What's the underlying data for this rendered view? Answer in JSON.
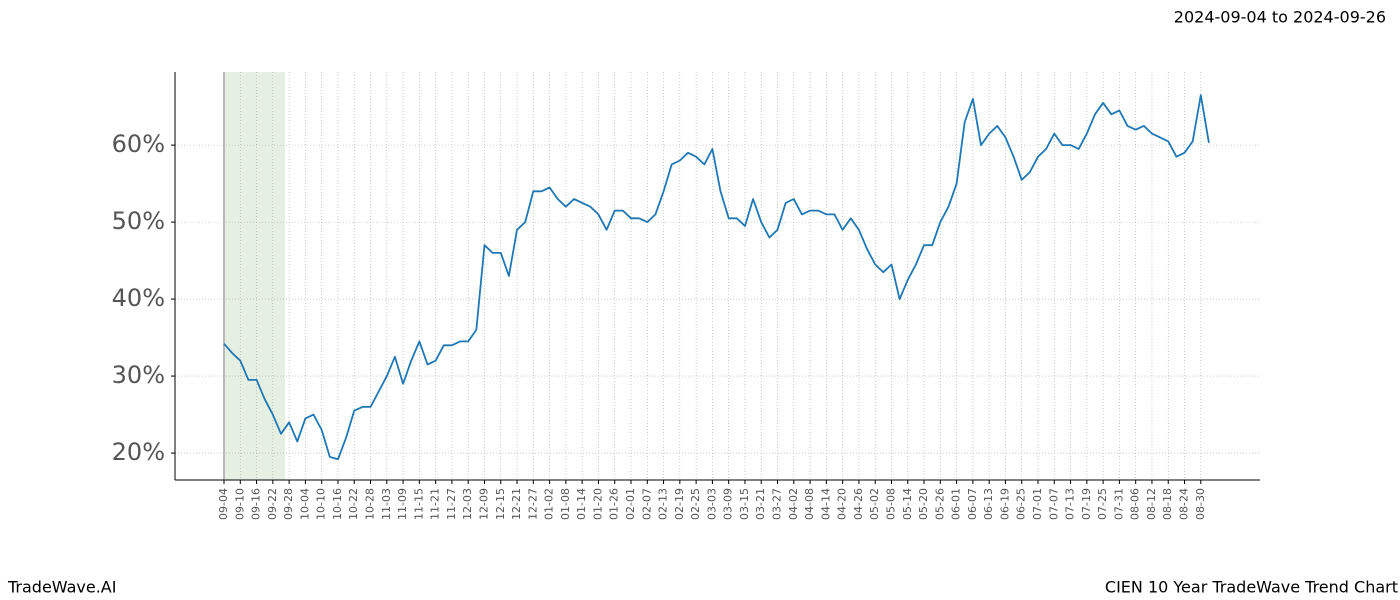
{
  "header": {
    "date_range": "2024-09-04 to 2024-09-26"
  },
  "footer": {
    "brand": "TradeWave.AI",
    "chart_name": "CIEN 10 Year TradeWave Trend Chart"
  },
  "chart_data": {
    "type": "line",
    "color": "#1f77b4",
    "grid": true,
    "shaded_range": [
      "09-04",
      "09-28"
    ],
    "shade_color": "#e5f0e3",
    "ylim": [
      16.5,
      69.5
    ],
    "yticks": [
      {
        "value": 20,
        "label": "20%"
      },
      {
        "value": 30,
        "label": "30%"
      },
      {
        "value": 40,
        "label": "40%"
      },
      {
        "value": 50,
        "label": "50%"
      },
      {
        "value": 60,
        "label": "60%"
      }
    ],
    "categories": [
      "09-04",
      null,
      "09-10",
      null,
      "09-16",
      null,
      "09-22",
      null,
      "09-28",
      null,
      "10-04",
      null,
      "10-10",
      null,
      "10-16",
      null,
      "10-22",
      null,
      "10-28",
      null,
      "11-03",
      null,
      "11-09",
      null,
      "11-15",
      null,
      "11-21",
      null,
      "11-27",
      null,
      "12-03",
      null,
      "12-09",
      null,
      "12-15",
      null,
      "12-21",
      null,
      "12-27",
      null,
      "01-02",
      null,
      "01-08",
      null,
      "01-14",
      null,
      "01-20",
      null,
      "01-26",
      null,
      "02-01",
      null,
      "02-07",
      null,
      "02-13",
      null,
      "02-19",
      null,
      "02-25",
      null,
      "03-03",
      null,
      "03-09",
      null,
      "03-15",
      null,
      "03-21",
      null,
      "03-27",
      null,
      "04-02",
      null,
      "04-08",
      null,
      "04-14",
      null,
      "04-20",
      null,
      "04-26",
      null,
      "05-02",
      null,
      "05-08",
      null,
      "05-14",
      null,
      "05-20",
      null,
      "05-26",
      null,
      "06-01",
      null,
      "06-07",
      null,
      "06-13",
      null,
      "06-19",
      null,
      "06-25",
      null,
      "07-01",
      null,
      "07-07",
      null,
      "07-13",
      null,
      "07-19",
      null,
      "07-25",
      null,
      "07-31",
      null,
      "08-06",
      null,
      "08-12",
      null,
      "08-18",
      null,
      "08-24",
      null,
      "08-30",
      null
    ],
    "values": [
      34.2,
      33.0,
      32.0,
      29.5,
      29.5,
      27,
      25,
      22.5,
      24,
      21.5,
      24.5,
      25,
      23,
      19.5,
      19.2,
      22,
      25.5,
      26,
      26,
      28,
      30,
      32.5,
      29,
      32,
      34.5,
      31.5,
      32,
      34,
      34,
      34.5,
      34.5,
      36,
      47,
      46,
      46,
      43,
      49,
      50,
      54,
      54,
      54.5,
      53,
      52,
      53,
      52.5,
      52,
      51,
      49,
      51.5,
      51.5,
      50.5,
      50.5,
      50,
      51,
      54,
      57.5,
      58,
      59,
      58.5,
      57.5,
      59.5,
      54,
      50.5,
      50.5,
      49.5,
      53,
      50,
      48,
      49,
      52.5,
      53,
      51,
      51.5,
      51.5,
      51,
      51,
      49,
      50.5,
      49,
      46.5,
      44.5,
      43.5,
      44.5,
      40,
      42.5,
      44.5,
      47,
      47,
      50,
      52,
      55,
      63,
      66,
      60,
      61.5,
      62.5,
      61,
      58.5,
      55.5,
      56.5,
      58.5,
      59.5,
      61.5,
      60,
      60,
      59.5,
      61.5,
      64,
      65.5,
      64,
      64.5,
      62.5,
      62,
      62.5,
      61.5,
      61,
      60.5,
      58.5,
      59,
      60.5,
      66.5,
      60.3
    ]
  }
}
